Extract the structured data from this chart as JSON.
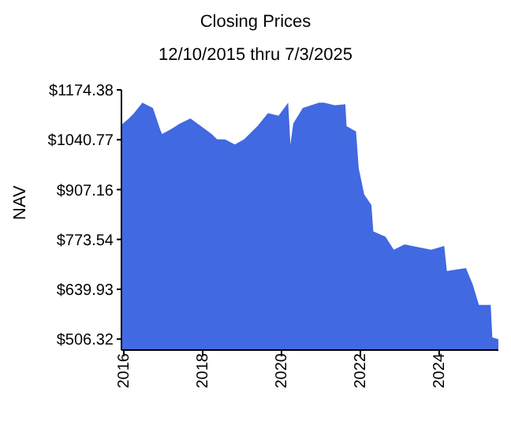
{
  "chart_data": {
    "type": "area",
    "title": "Closing Prices",
    "subtitle": "12/10/2015 thru 7/3/2025",
    "ylabel": "NAV",
    "color": "#4169e1",
    "x": [
      "2015-12-10",
      "2016-02-17",
      "2016-04-05",
      "2016-06-21",
      "2016-09-27",
      "2016-12-01",
      "2016-12-20",
      "2017-03-18",
      "2017-06-03",
      "2017-09-09",
      "2017-12-16",
      "2018-03-25",
      "2018-05-15",
      "2018-07-27",
      "2018-10-26",
      "2019-01-19",
      "2019-05-23",
      "2019-08-29",
      "2019-12-05",
      "2020-03-03",
      "2020-03-24",
      "2020-04-19",
      "2020-07-16",
      "2020-12-13",
      "2021-01-30",
      "2021-05-08",
      "2021-08-15",
      "2021-08-26",
      "2021-11-22",
      "2021-12-17",
      "2022-02-06",
      "2022-04-13",
      "2022-05-01",
      "2022-08-22",
      "2022-11-07",
      "2023-02-14",
      "2023-04-28",
      "2023-10-19",
      "2024-02-17",
      "2024-03-13",
      "2024-09-05",
      "2024-11-06",
      "2025-01-04",
      "2025-04-23",
      "2025-05-08",
      "2025-07-03"
    ],
    "values": [
      1081,
      1098,
      1112,
      1140,
      1126,
      1070,
      1056,
      1070,
      1084,
      1098,
      1077,
      1056,
      1042,
      1042,
      1028,
      1042,
      1077,
      1112,
      1105,
      1140,
      1028,
      1084,
      1126,
      1140,
      1140,
      1133,
      1136,
      1077,
      1063,
      964,
      894,
      866,
      795,
      781,
      746,
      760,
      756,
      746,
      756,
      689,
      697,
      654,
      598,
      598,
      511,
      506
    ],
    "xlim": [
      "2015-12-10",
      "2025-07-03"
    ],
    "xticks": [
      "2016",
      "2018",
      "2020",
      "2022",
      "2024"
    ],
    "ylim": [
      477,
      1174.38
    ],
    "yticks": [
      {
        "value": 506.32,
        "label": "$506.32"
      },
      {
        "value": 639.93,
        "label": "$639.93"
      },
      {
        "value": 773.54,
        "label": "$773.54"
      },
      {
        "value": 907.16,
        "label": "$907.16"
      },
      {
        "value": 1040.77,
        "label": "$1040.77"
      },
      {
        "value": 1174.38,
        "label": "$1174.38"
      }
    ],
    "grid": false,
    "legend": false
  }
}
